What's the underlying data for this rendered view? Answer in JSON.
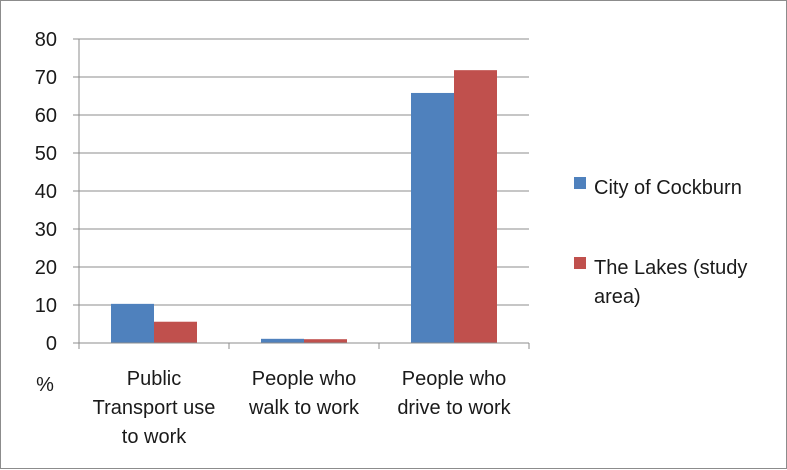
{
  "chart_data": {
    "type": "bar",
    "ylabel": "%",
    "ylim": [
      0,
      80
    ],
    "yticks": [
      0,
      10,
      20,
      30,
      40,
      50,
      60,
      70,
      80
    ],
    "grid": true,
    "legend_position": "right",
    "categories": [
      [
        "Public",
        "Transport use",
        "to work"
      ],
      [
        "People who",
        "walk to work"
      ],
      [
        "People who",
        "drive to work"
      ]
    ],
    "series": [
      {
        "name": "City of Cockburn",
        "color": "#4f81bd",
        "values": [
          10.3,
          1.1,
          65.8
        ]
      },
      {
        "name": [
          "The Lakes (study",
          "area)"
        ],
        "color": "#c0504d",
        "values": [
          5.6,
          1.0,
          71.8
        ]
      }
    ]
  }
}
